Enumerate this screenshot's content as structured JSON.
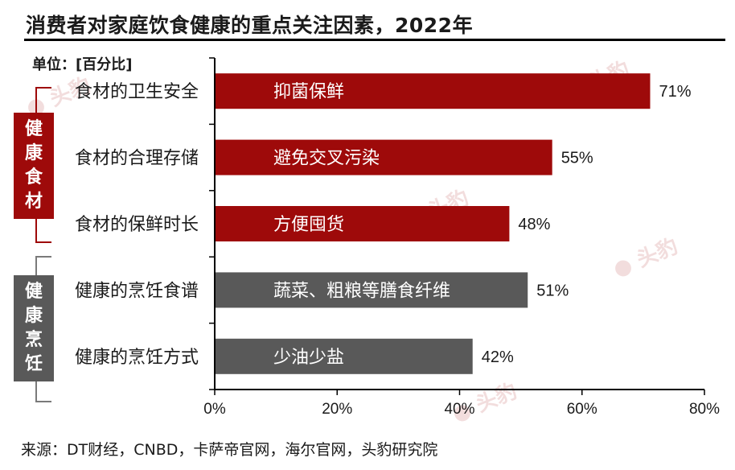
{
  "title": "消费者对家庭饮食健康的重点关注因素，2022年",
  "unit_label": "单位：[百分比]",
  "source": "来源：DT财经，CNBD，卡萨帝官网，海尔官网，头豹研究院",
  "watermark": "头豹",
  "groups": [
    {
      "label": "健康食材",
      "color": "#9e0a0a"
    },
    {
      "label": "健康烹饪",
      "color": "#595959"
    }
  ],
  "chart_data": {
    "type": "bar",
    "orientation": "horizontal",
    "categories": [
      "食材的卫生安全",
      "食材的合理存储",
      "食材的保鲜时长",
      "健康的烹饪食谱",
      "健康的烹饪方式"
    ],
    "values": [
      71,
      55,
      48,
      51,
      42
    ],
    "value_labels": [
      "71%",
      "55%",
      "48%",
      "51%",
      "42%"
    ],
    "bar_labels": [
      "抑菌保鲜",
      "避免交叉污染",
      "方便囤货",
      "蔬菜、粗粮等膳食纤维",
      "少油少盐"
    ],
    "bar_colors": [
      "#9e0a0a",
      "#9e0a0a",
      "#9e0a0a",
      "#595959",
      "#595959"
    ],
    "x_ticks": [
      0,
      20,
      40,
      60,
      80
    ],
    "x_tick_labels": [
      "0%",
      "20%",
      "40%",
      "60%",
      "80%"
    ],
    "xlim": [
      0,
      80
    ],
    "grid": false
  }
}
